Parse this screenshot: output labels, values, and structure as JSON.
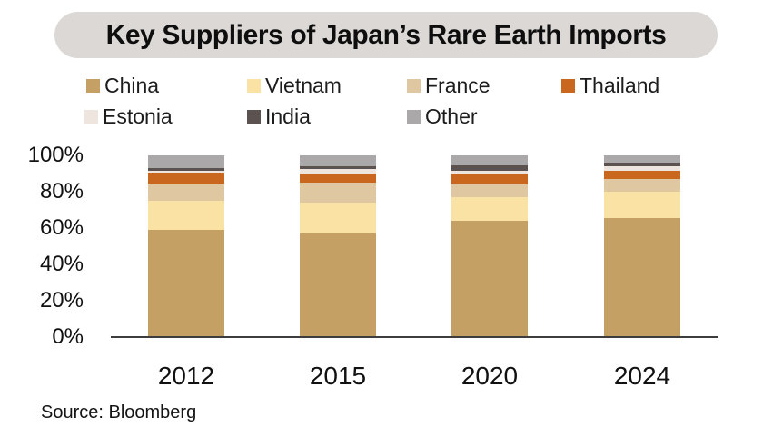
{
  "title": "Key Suppliers of Japan’s Rare Earth Imports",
  "source": "Source: Bloomberg",
  "colors": {
    "title_pill_bg": "#dcd8d6",
    "axis_line": "#3d3d3d",
    "text": "#161616",
    "background": "#ffffff"
  },
  "chart_data": {
    "type": "bar",
    "stacked": true,
    "unit": "%",
    "title": "Key Suppliers of Japan’s Rare Earth Imports",
    "categories": [
      "2012",
      "2015",
      "2020",
      "2024"
    ],
    "series": [
      {
        "name": "China",
        "color": "#c5a064",
        "values": [
          59,
          57,
          64,
          65.5
        ]
      },
      {
        "name": "Vietnam",
        "color": "#fae2a4",
        "values": [
          16,
          17,
          13,
          14.5
        ]
      },
      {
        "name": "France",
        "color": "#dfc8a1",
        "values": [
          9.5,
          11,
          7,
          7
        ]
      },
      {
        "name": "Thailand",
        "color": "#c8671d",
        "values": [
          6,
          5,
          6,
          4.5
        ]
      },
      {
        "name": "Estonia",
        "color": "#efe5df",
        "values": [
          1,
          2.5,
          1.5,
          2.5
        ]
      },
      {
        "name": "India",
        "color": "#5c524f",
        "values": [
          1.5,
          1.5,
          3,
          2
        ]
      },
      {
        "name": "Other",
        "color": "#aaa8a8",
        "values": [
          7,
          6,
          5.5,
          4
        ]
      }
    ],
    "yticks": [
      "100%",
      "80%",
      "60%",
      "40%",
      "20%",
      "0%"
    ],
    "ylim": [
      0,
      100
    ],
    "grid": false,
    "legend_position": "top",
    "xlabel": "",
    "ylabel": ""
  }
}
